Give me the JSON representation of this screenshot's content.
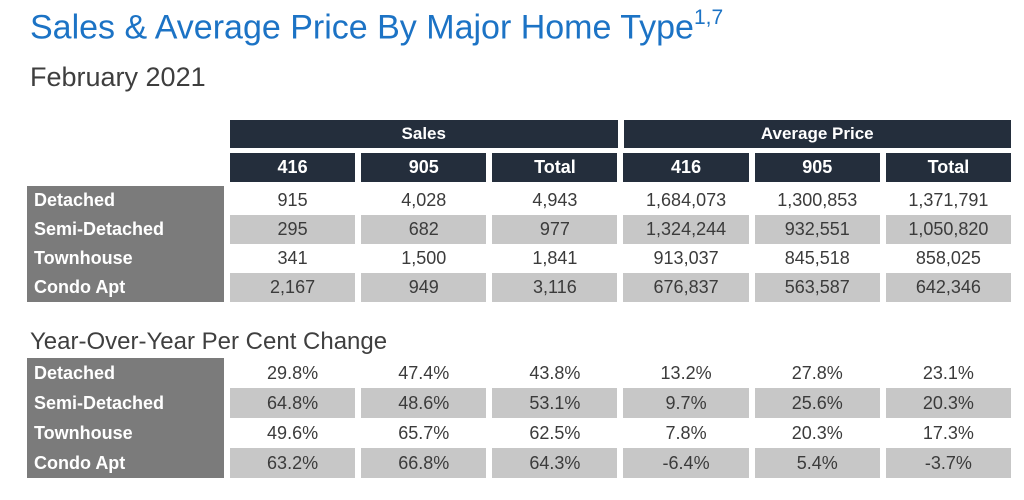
{
  "title": {
    "text": "Sales & Average Price By Major Home Type",
    "superscript": "1,7"
  },
  "subtitle": "February 2021",
  "colors": {
    "title_blue": "#1c73c5",
    "header_navy": "#242e3c",
    "row_label_gray": "#7b7b7b",
    "stripe_gray": "#c7c7c7",
    "data_text": "#3b3b3b"
  },
  "table1": {
    "group_headers": [
      "Sales",
      "Average Price"
    ],
    "sub_headers": [
      "416",
      "905",
      "Total",
      "416",
      "905",
      "Total"
    ],
    "rows": [
      {
        "label": "Detached",
        "values": [
          "915",
          "4,028",
          "4,943",
          "1,684,073",
          "1,300,853",
          "1,371,791"
        ]
      },
      {
        "label": "Semi-Detached",
        "values": [
          "295",
          "682",
          "977",
          "1,324,244",
          "932,551",
          "1,050,820"
        ]
      },
      {
        "label": "Townhouse",
        "values": [
          "341",
          "1,500",
          "1,841",
          "913,037",
          "845,518",
          "858,025"
        ]
      },
      {
        "label": "Condo Apt",
        "values": [
          "2,167",
          "949",
          "3,116",
          "676,837",
          "563,587",
          "642,346"
        ]
      }
    ]
  },
  "yoy": {
    "heading": "Year-Over-Year Per Cent Change",
    "rows": [
      {
        "label": "Detached",
        "values": [
          "29.8%",
          "47.4%",
          "43.8%",
          "13.2%",
          "27.8%",
          "23.1%"
        ]
      },
      {
        "label": "Semi-Detached",
        "values": [
          "64.8%",
          "48.6%",
          "53.1%",
          "9.7%",
          "25.6%",
          "20.3%"
        ]
      },
      {
        "label": "Townhouse",
        "values": [
          "49.6%",
          "65.7%",
          "62.5%",
          "7.8%",
          "20.3%",
          "17.3%"
        ]
      },
      {
        "label": "Condo Apt",
        "values": [
          "63.2%",
          "66.8%",
          "64.3%",
          "-6.4%",
          "5.4%",
          "-3.7%"
        ]
      }
    ]
  }
}
